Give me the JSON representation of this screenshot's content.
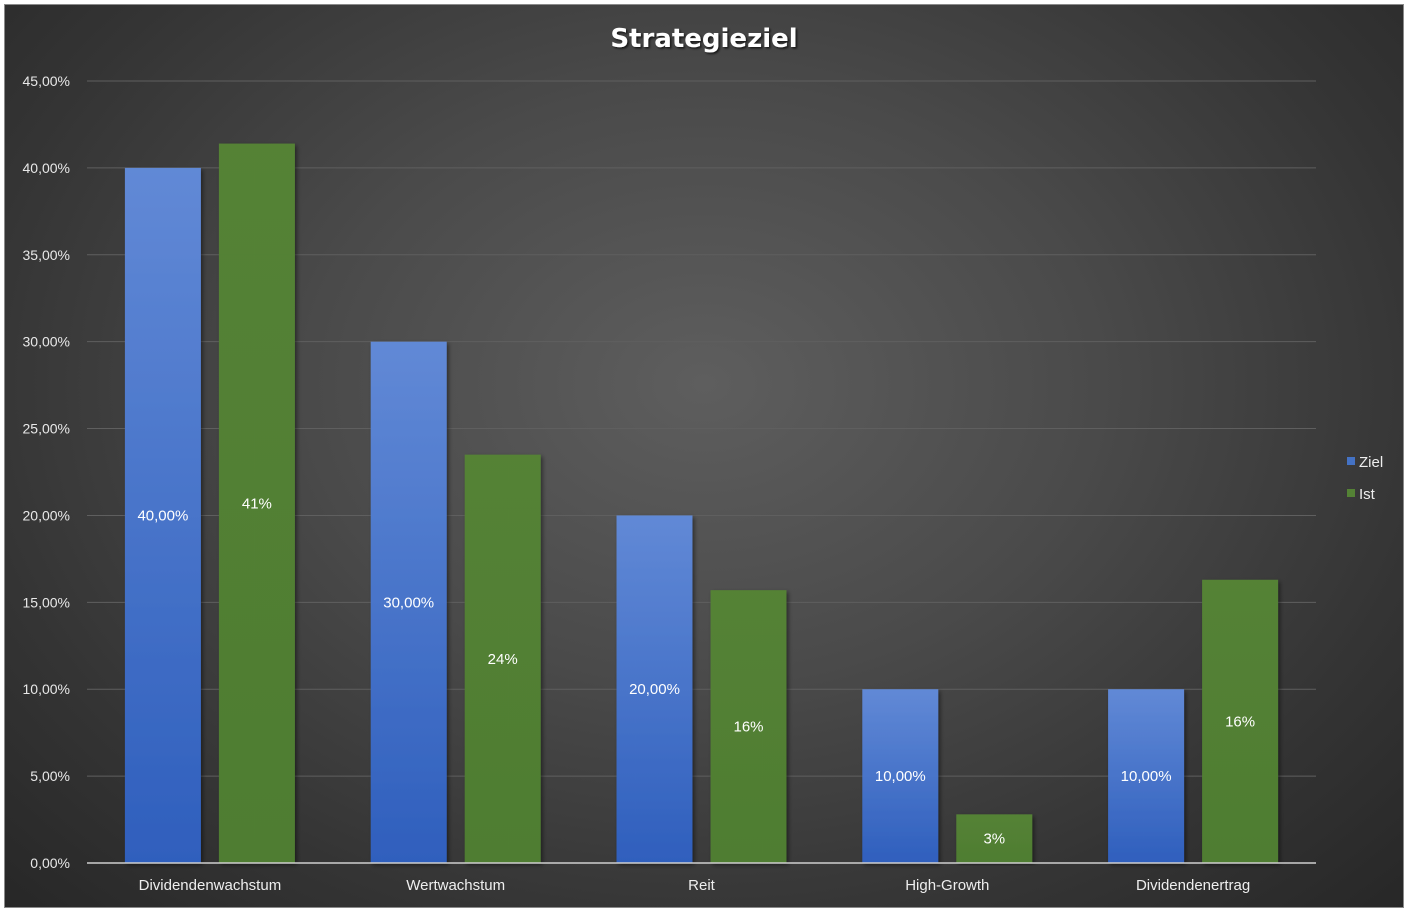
{
  "chart_data": {
    "type": "bar",
    "title": "Strategieziel",
    "xlabel": "",
    "ylabel": "",
    "categories": [
      "Dividendenwachstum",
      "Wertwachstum",
      "Reit",
      "High-Growth",
      "Dividendenertrag"
    ],
    "series": [
      {
        "name": "Ziel",
        "color": "#4472c4",
        "values": [
          40.0,
          30.0,
          20.0,
          10.0,
          10.0
        ],
        "labels": [
          "40,00%",
          "30,00%",
          "20,00%",
          "10,00%",
          "10,00%"
        ]
      },
      {
        "name": "Ist",
        "color": "#548235",
        "values": [
          41.4,
          23.5,
          15.7,
          2.8,
          16.3
        ],
        "labels": [
          "41%",
          "24%",
          "16%",
          "3%",
          "16%"
        ]
      }
    ],
    "ylim": [
      0,
      45
    ],
    "yticks": [
      0,
      5,
      10,
      15,
      20,
      25,
      30,
      35,
      40,
      45
    ],
    "ytick_labels": [
      "0,00%",
      "5,00%",
      "10,00%",
      "15,00%",
      "20,00%",
      "25,00%",
      "30,00%",
      "35,00%",
      "40,00%",
      "45,00%"
    ],
    "grid": true,
    "legend": "right"
  }
}
